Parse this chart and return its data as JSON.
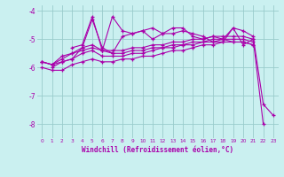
{
  "xlabel": "Windchill (Refroidissement éolien,°C)",
  "xlim": [
    -0.5,
    23.5
  ],
  "ylim": [
    -8.5,
    -3.8
  ],
  "yticks": [
    -8,
    -7,
    -6,
    -5,
    -4
  ],
  "xticks": [
    0,
    1,
    2,
    3,
    4,
    5,
    6,
    7,
    8,
    9,
    10,
    11,
    12,
    13,
    14,
    15,
    16,
    17,
    18,
    19,
    20,
    21,
    22,
    23
  ],
  "background_color": "#caf0f0",
  "line_color": "#aa00aa",
  "grid_color": "#99cccc",
  "series": [
    [
      null,
      -6.0,
      -5.8,
      -5.7,
      -5.3,
      -4.3,
      -5.3,
      -5.5,
      -4.9,
      -4.8,
      -4.7,
      -4.6,
      -4.8,
      -4.6,
      -4.6,
      -4.9,
      -5.0,
      -4.9,
      -5.0,
      -4.6,
      -4.7,
      -4.9,
      -7.3,
      -7.7
    ],
    [
      null,
      null,
      null,
      -5.3,
      -5.2,
      -4.2,
      -5.4,
      -4.2,
      -4.7,
      -4.8,
      -4.7,
      -5.0,
      -4.8,
      -4.8,
      -4.7,
      -4.8,
      -4.9,
      -5.1,
      -5.1,
      -4.6,
      -5.2,
      -5.0,
      -8.0,
      null
    ],
    [
      -5.8,
      -5.9,
      -5.6,
      -5.5,
      -5.4,
      -5.3,
      -5.4,
      -5.4,
      -5.4,
      -5.3,
      -5.3,
      -5.2,
      -5.2,
      -5.1,
      -5.1,
      -5.0,
      -5.0,
      -4.9,
      -4.9,
      -4.9,
      -4.9,
      -5.0,
      null,
      null
    ],
    [
      -5.8,
      -5.9,
      -5.7,
      -5.5,
      -5.3,
      -5.2,
      -5.4,
      -5.5,
      -5.5,
      -5.4,
      -5.4,
      -5.3,
      -5.3,
      -5.2,
      -5.2,
      -5.1,
      -5.1,
      -5.0,
      -5.0,
      -5.0,
      -5.0,
      -5.1,
      null,
      null
    ],
    [
      -5.8,
      -5.9,
      -5.8,
      -5.7,
      -5.5,
      -5.4,
      -5.6,
      -5.6,
      -5.6,
      -5.5,
      -5.5,
      -5.4,
      -5.3,
      -5.3,
      -5.2,
      -5.2,
      -5.1,
      -5.1,
      -5.0,
      -5.1,
      -5.1,
      -5.2,
      null,
      null
    ],
    [
      -6.0,
      -6.1,
      -6.1,
      -5.9,
      -5.8,
      -5.7,
      -5.8,
      -5.8,
      -5.7,
      -5.7,
      -5.6,
      -5.6,
      -5.5,
      -5.4,
      -5.4,
      -5.3,
      -5.2,
      -5.2,
      -5.1,
      -5.1,
      -5.1,
      -5.2,
      null,
      null
    ]
  ]
}
